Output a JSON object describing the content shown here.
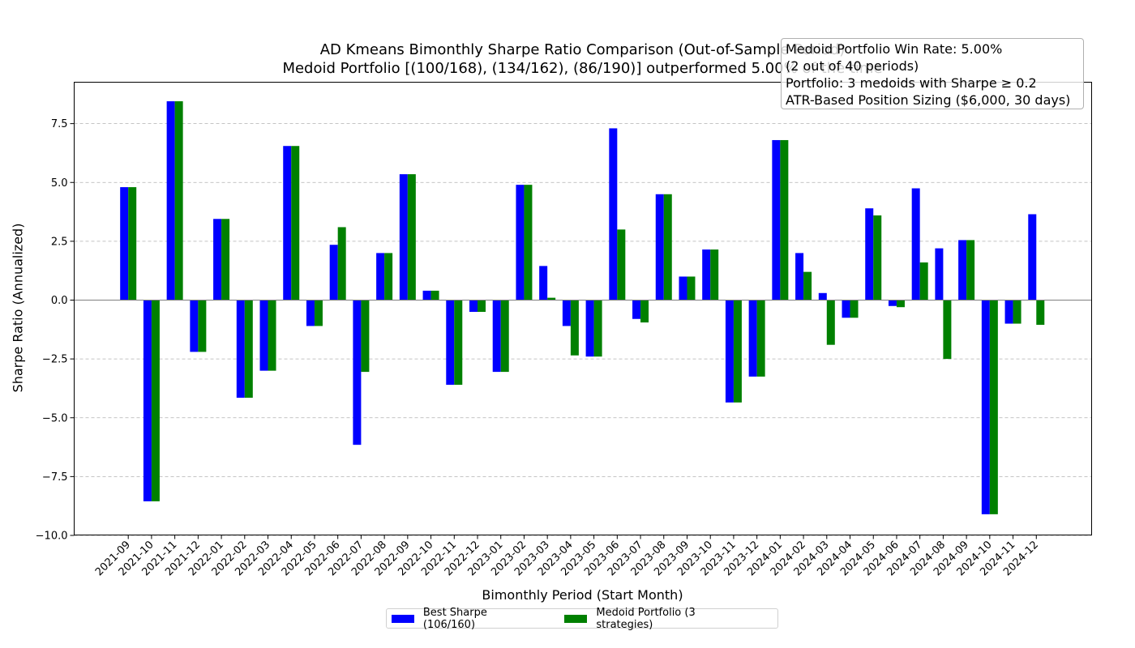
{
  "chart_data": {
    "type": "bar",
    "title": "AD Kmeans Bimonthly Sharpe Ratio Comparison (Out-of-Sample Period)",
    "subtitle": "Medoid Portfolio [(100/168), (134/162), (86/190)] outperformed 5.00% of the time",
    "xlabel": "Bimonthly Period (Start Month)",
    "ylabel": "Sharpe Ratio (Annualized)",
    "ylim": [
      -10,
      9.3
    ],
    "yticks": [
      7.5,
      5.0,
      2.5,
      0.0,
      -2.5,
      -5.0,
      -7.5,
      -10.0
    ],
    "ytick_labels": [
      "7.5",
      "5.0",
      "2.5",
      "0.0",
      "−2.5",
      "−5.0",
      "−7.5",
      "−10.0"
    ],
    "grid": "horizontal dashed",
    "legend_position": "bottom-center",
    "categories": [
      "2021-09",
      "2021-10",
      "2021-11",
      "2021-12",
      "2022-01",
      "2022-02",
      "2022-03",
      "2022-04",
      "2022-05",
      "2022-06",
      "2022-07",
      "2022-08",
      "2022-09",
      "2022-10",
      "2022-11",
      "2022-12",
      "2023-01",
      "2023-02",
      "2023-03",
      "2023-04",
      "2023-05",
      "2023-06",
      "2023-07",
      "2023-08",
      "2023-09",
      "2023-10",
      "2023-11",
      "2023-12",
      "2024-01",
      "2024-02",
      "2024-03",
      "2024-04",
      "2024-05",
      "2024-06",
      "2024-07",
      "2024-08",
      "2024-09",
      "2024-10",
      "2024-11",
      "2024-12"
    ],
    "series": [
      {
        "name": "Best Sharpe (106/160)",
        "color": "#0000ff",
        "values": [
          4.8,
          -8.55,
          8.45,
          -2.2,
          3.45,
          -4.15,
          -3.0,
          6.55,
          -1.1,
          2.35,
          -6.15,
          2.0,
          5.35,
          0.4,
          -3.6,
          -0.5,
          -3.05,
          4.9,
          1.45,
          -1.1,
          -2.4,
          7.3,
          -0.8,
          4.5,
          1.0,
          2.15,
          -4.35,
          -3.25,
          6.8,
          2.0,
          0.3,
          -0.75,
          3.9,
          -0.25,
          4.75,
          2.2,
          2.55,
          -9.1,
          -1.0,
          3.65
        ]
      },
      {
        "name": "Medoid Portfolio (3 strategies)",
        "color": "#008000",
        "values": [
          4.8,
          -8.55,
          8.45,
          -2.2,
          3.45,
          -4.15,
          -3.0,
          6.55,
          -1.1,
          3.1,
          -3.05,
          2.0,
          5.35,
          0.4,
          -3.6,
          -0.5,
          -3.05,
          4.9,
          0.1,
          -2.35,
          -2.4,
          3.0,
          -0.95,
          4.5,
          1.0,
          2.15,
          -4.35,
          -3.25,
          6.8,
          1.2,
          -1.9,
          -0.75,
          3.6,
          -0.3,
          1.6,
          -2.5,
          2.55,
          -9.1,
          -1.0,
          -1.05
        ]
      }
    ],
    "annotation": [
      "Medoid Portfolio Win Rate: 5.00%",
      "(2 out of 40 periods)",
      "Portfolio: 3 medoids with Sharpe ≥ 0.2",
      "ATR-Based Position Sizing ($6,000, 30 days)"
    ]
  }
}
